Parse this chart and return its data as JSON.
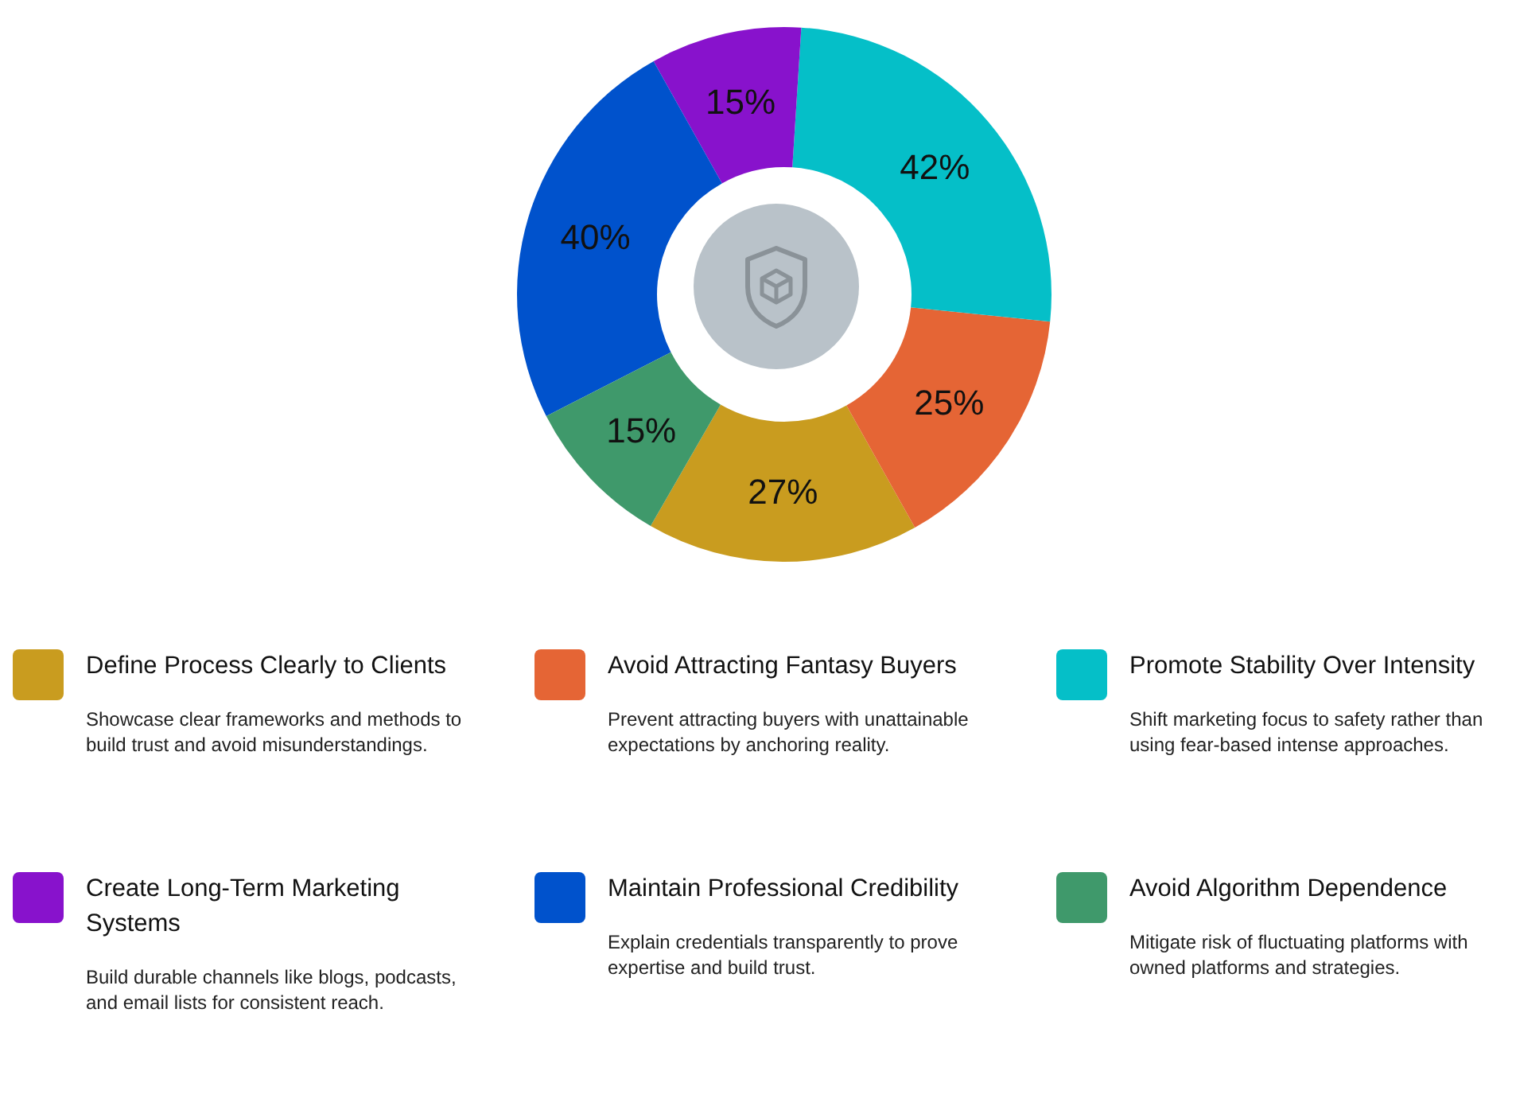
{
  "chart_data": {
    "type": "donut",
    "categories": [
      "Define Process Clearly to Clients",
      "Avoid Attracting Fantasy Buyers",
      "Promote Stability Over Intensity",
      "Create Long-Term Marketing Systems",
      "Maintain Professional Credibility",
      "Avoid Algorithm Dependence"
    ],
    "values": [
      27,
      25,
      42,
      15,
      40,
      15
    ],
    "value_labels": [
      "27%",
      "25%",
      "42%",
      "15%",
      "40%",
      "15%"
    ],
    "colors": [
      "#c99c1f",
      "#e56535",
      "#05bfc8",
      "#8812cc",
      "#0052cc",
      "#3f996b"
    ],
    "legend": "bottom",
    "annotations": [
      "Showcase clear frameworks and methods to build trust and avoid misunderstandings.",
      "Prevent attracting buyers with unattainable expectations by anchoring reality.",
      "Shift marketing focus to safety rather than using fear-based intense approaches.",
      "Build durable channels like blogs, podcasts, and email lists for consistent reach.",
      "Explain credentials transparently to prove expertise and build trust.",
      "Mitigate risk of fluctuating platforms with owned platforms and strategies."
    ]
  }
}
